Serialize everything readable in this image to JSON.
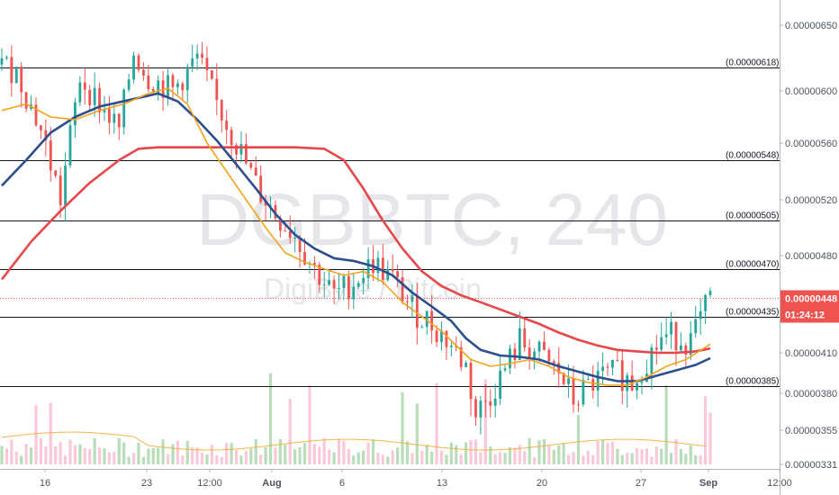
{
  "watermark": {
    "symbol": "DGBBTC, 240",
    "description": "DigiByte / Bitcoin"
  },
  "colors": {
    "candle_up": "#26a69a",
    "candle_down": "#ef5350",
    "ma_fast": "#f7a21b",
    "ma_mid": "#2b4f8e",
    "ma_slow": "#e8474a",
    "fib_line": "#131722",
    "last_price": "#ef5350",
    "volume_up": "#a5d6a7",
    "volume_down": "#f8bbd0"
  },
  "countdown": "01:24:12",
  "chart_data": {
    "type": "candlestick",
    "title": "",
    "ylim": [
      3.31e-06,
      6.55e-06
    ],
    "y_ticks": [
      "0.00000650",
      "0.00000600",
      "0.00000560",
      "0.00000520",
      "0.00000480",
      "0.00000410",
      "0.00000380",
      "0.00000355",
      "0.00000331"
    ],
    "x_ticks": [
      "16",
      "23",
      "12:00",
      "Aug",
      "6",
      "13",
      "20",
      "27",
      "Sep",
      "12:00"
    ],
    "last_price": "0.00000448",
    "fib_levels": [
      {
        "label": "(0.00000618)",
        "value": 6.18e-06
      },
      {
        "label": "(0.00000548)",
        "value": 5.48e-06
      },
      {
        "label": "(0.00000505)",
        "value": 5.05e-06
      },
      {
        "label": "(0.00000470)",
        "value": 4.7e-06
      },
      {
        "label": "(0.00000435)",
        "value": 4.35e-06
      },
      {
        "label": "(0.00000385)",
        "value": 3.85e-06
      }
    ],
    "close_path": [
      [
        0,
        6.2e-06
      ],
      [
        3,
        6.15e-06
      ],
      [
        8,
        5.7e-06
      ],
      [
        12,
        5.2e-06
      ],
      [
        16,
        6.1e-06
      ],
      [
        20,
        5.9e-06
      ],
      [
        24,
        5.7e-06
      ],
      [
        27,
        6.3e-06
      ],
      [
        30,
        6.1e-06
      ],
      [
        35,
        6e-06
      ],
      [
        40,
        6.25e-06
      ],
      [
        44,
        5.9e-06
      ],
      [
        48,
        5.6e-06
      ],
      [
        52,
        5.3e-06
      ],
      [
        56,
        5.1e-06
      ],
      [
        60,
        4.95e-06
      ],
      [
        64,
        4.7e-06
      ],
      [
        68,
        4.5e-06
      ],
      [
        72,
        4.6e-06
      ],
      [
        76,
        4.75e-06
      ],
      [
        80,
        4.62e-06
      ],
      [
        84,
        4.4e-06
      ],
      [
        88,
        4.3e-06
      ],
      [
        92,
        4.15e-06
      ],
      [
        95,
        4e-06
      ],
      [
        97,
        3.65e-06
      ],
      [
        100,
        3.8e-06
      ],
      [
        103,
        3.98e-06
      ],
      [
        106,
        4.18e-06
      ],
      [
        110,
        4.08e-06
      ],
      [
        114,
        3.95e-06
      ],
      [
        117,
        3.75e-06
      ],
      [
        120,
        3.85e-06
      ],
      [
        123,
        3.92e-06
      ],
      [
        126,
        3.95e-06
      ],
      [
        129,
        3.88e-06
      ],
      [
        132,
        4.05e-06
      ],
      [
        135,
        4.2e-06
      ],
      [
        138,
        4.22e-06
      ],
      [
        141,
        4.18e-06
      ],
      [
        143,
        4.32e-06
      ],
      [
        145,
        4.48e-06
      ]
    ],
    "ma_fast_path": [
      [
        0,
        5.85e-06
      ],
      [
        5,
        5.9e-06
      ],
      [
        10,
        5.8e-06
      ],
      [
        15,
        5.78e-06
      ],
      [
        20,
        5.85e-06
      ],
      [
        25,
        5.9e-06
      ],
      [
        30,
        5.98e-06
      ],
      [
        34,
        6.02e-06
      ],
      [
        38,
        5.9e-06
      ],
      [
        42,
        5.6e-06
      ],
      [
        46,
        5.4e-06
      ],
      [
        50,
        5.2e-06
      ],
      [
        54,
        5e-06
      ],
      [
        58,
        4.82e-06
      ],
      [
        62,
        4.75e-06
      ],
      [
        66,
        4.7e-06
      ],
      [
        70,
        4.65e-06
      ],
      [
        74,
        4.68e-06
      ],
      [
        78,
        4.6e-06
      ],
      [
        82,
        4.45e-06
      ],
      [
        86,
        4.35e-06
      ],
      [
        90,
        4.25e-06
      ],
      [
        93,
        4.15e-06
      ],
      [
        96,
        4.05e-06
      ],
      [
        100,
        4e-06
      ],
      [
        104,
        4.02e-06
      ],
      [
        108,
        4.05e-06
      ],
      [
        112,
        4e-06
      ],
      [
        116,
        3.92e-06
      ],
      [
        120,
        3.88e-06
      ],
      [
        124,
        3.86e-06
      ],
      [
        128,
        3.86e-06
      ],
      [
        132,
        3.92e-06
      ],
      [
        136,
        4e-06
      ],
      [
        140,
        4.05e-06
      ],
      [
        145,
        4.16e-06
      ]
    ],
    "ma_mid_path": [
      [
        0,
        5.3e-06
      ],
      [
        5,
        5.48e-06
      ],
      [
        10,
        5.68e-06
      ],
      [
        15,
        5.8e-06
      ],
      [
        20,
        5.88e-06
      ],
      [
        26,
        5.93e-06
      ],
      [
        32,
        5.98e-06
      ],
      [
        36,
        5.92e-06
      ],
      [
        40,
        5.78e-06
      ],
      [
        44,
        5.62e-06
      ],
      [
        48,
        5.45e-06
      ],
      [
        52,
        5.28e-06
      ],
      [
        56,
        5.1e-06
      ],
      [
        60,
        4.95e-06
      ],
      [
        64,
        4.85e-06
      ],
      [
        68,
        4.78e-06
      ],
      [
        72,
        4.76e-06
      ],
      [
        76,
        4.72e-06
      ],
      [
        80,
        4.65e-06
      ],
      [
        84,
        4.52e-06
      ],
      [
        88,
        4.42e-06
      ],
      [
        92,
        4.32e-06
      ],
      [
        95,
        4.2e-06
      ],
      [
        98,
        4.12e-06
      ],
      [
        102,
        4.08e-06
      ],
      [
        106,
        4.07e-06
      ],
      [
        110,
        4.05e-06
      ],
      [
        114,
        4e-06
      ],
      [
        118,
        3.96e-06
      ],
      [
        122,
        3.92e-06
      ],
      [
        126,
        3.89e-06
      ],
      [
        130,
        3.89e-06
      ],
      [
        134,
        3.93e-06
      ],
      [
        138,
        3.97e-06
      ],
      [
        142,
        4.01e-06
      ],
      [
        145,
        4.06e-06
      ]
    ],
    "ma_slow_path": [
      [
        0,
        4.62e-06
      ],
      [
        6,
        4.9e-06
      ],
      [
        12,
        5.12e-06
      ],
      [
        18,
        5.32e-06
      ],
      [
        24,
        5.48e-06
      ],
      [
        28,
        5.56e-06
      ],
      [
        32,
        5.57e-06
      ],
      [
        40,
        5.57e-06
      ],
      [
        50,
        5.57e-06
      ],
      [
        60,
        5.57e-06
      ],
      [
        66,
        5.56e-06
      ],
      [
        70,
        5.48e-06
      ],
      [
        74,
        5.28e-06
      ],
      [
        78,
        5.05e-06
      ],
      [
        82,
        4.85e-06
      ],
      [
        86,
        4.68e-06
      ],
      [
        90,
        4.57e-06
      ],
      [
        94,
        4.5e-06
      ],
      [
        98,
        4.45e-06
      ],
      [
        102,
        4.4e-06
      ],
      [
        106,
        4.35e-06
      ],
      [
        110,
        4.3e-06
      ],
      [
        114,
        4.24e-06
      ],
      [
        118,
        4.19e-06
      ],
      [
        122,
        4.15e-06
      ],
      [
        126,
        4.12e-06
      ],
      [
        130,
        4.11e-06
      ],
      [
        134,
        4.1e-06
      ],
      [
        138,
        4.1e-06
      ],
      [
        142,
        4.11e-06
      ],
      [
        145,
        4.13e-06
      ]
    ]
  }
}
